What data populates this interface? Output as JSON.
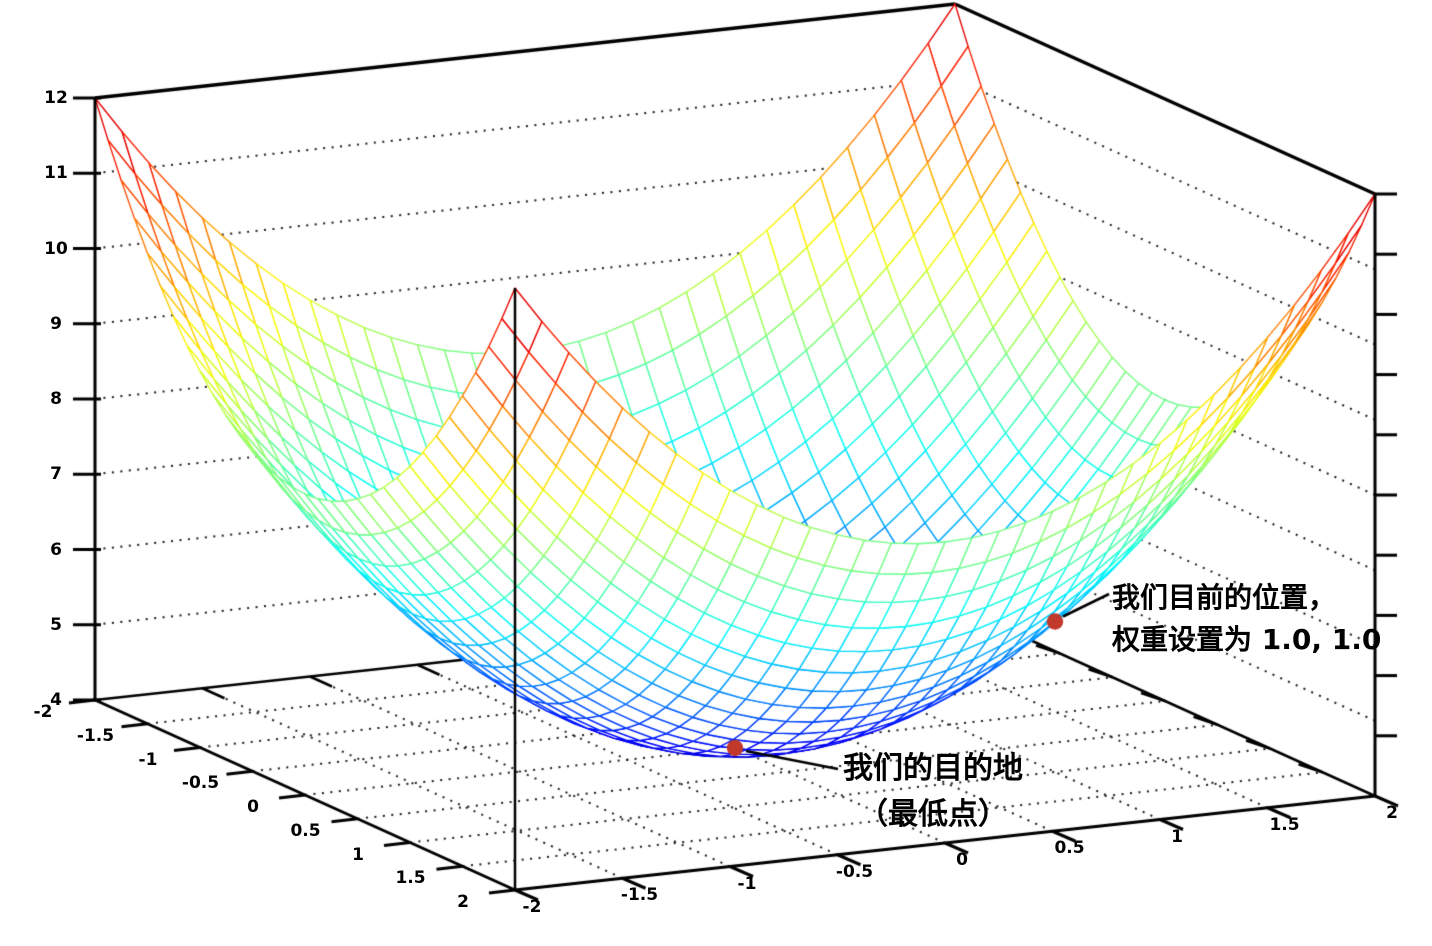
{
  "page": {
    "background": "#ffffff"
  },
  "chart_data": {
    "type": "surface",
    "title": "",
    "function": "z = x^2 + y^2 + 4",
    "x_axis": {
      "range": [
        -2,
        2
      ],
      "ticks": [
        -2,
        -1.5,
        -1,
        -0.5,
        0,
        0.5,
        1,
        1.5,
        2
      ],
      "tick_labels": [
        "-2",
        "-1.5",
        "-1",
        "-0.5",
        "0",
        "0.5",
        "1",
        "1.5",
        "2"
      ]
    },
    "y_axis": {
      "range": [
        -2,
        2
      ],
      "ticks": [
        -2,
        -1.5,
        -1,
        -0.5,
        0,
        0.5,
        1,
        1.5,
        2
      ],
      "tick_labels": [
        "-2",
        "-1.5",
        "-1",
        "-0.5",
        "0",
        "0.5",
        "1",
        "1.5",
        "2"
      ]
    },
    "z_axis": {
      "range": [
        4,
        12
      ],
      "ticks": [
        4,
        5,
        6,
        7,
        8,
        9,
        10,
        11,
        12
      ],
      "tick_labels": [
        "4",
        "5",
        "6",
        "7",
        "8",
        "9",
        "10",
        "11",
        "12"
      ]
    },
    "right_axis": {
      "tick_intervals": 10,
      "tick_labels": []
    },
    "mesh": {
      "grid_cells": 32,
      "colormap": "rainbow jet (blue low → cyan → green → yellow → orange → red high)",
      "color_low": "#0014e6",
      "color_high": "#b30000"
    },
    "wall_grid_z_levels": [
      5,
      6,
      7,
      8,
      9,
      10,
      11
    ],
    "floor_grid_step": 0.5,
    "grid_line_style": "dotted",
    "marked_points": [
      {
        "id": "destination",
        "x": 0,
        "y": 0,
        "z": 4,
        "marker_color": "#c0392b",
        "label_line1": "我们的目的地",
        "label_line2": "（最低点）"
      },
      {
        "id": "current_position",
        "x": 1,
        "y": 1,
        "z": 6,
        "marker_color": "#c0392b",
        "label_line1": "我们目前的位置，",
        "label_line2": "权重设置为 1.0, 1.0"
      }
    ]
  }
}
